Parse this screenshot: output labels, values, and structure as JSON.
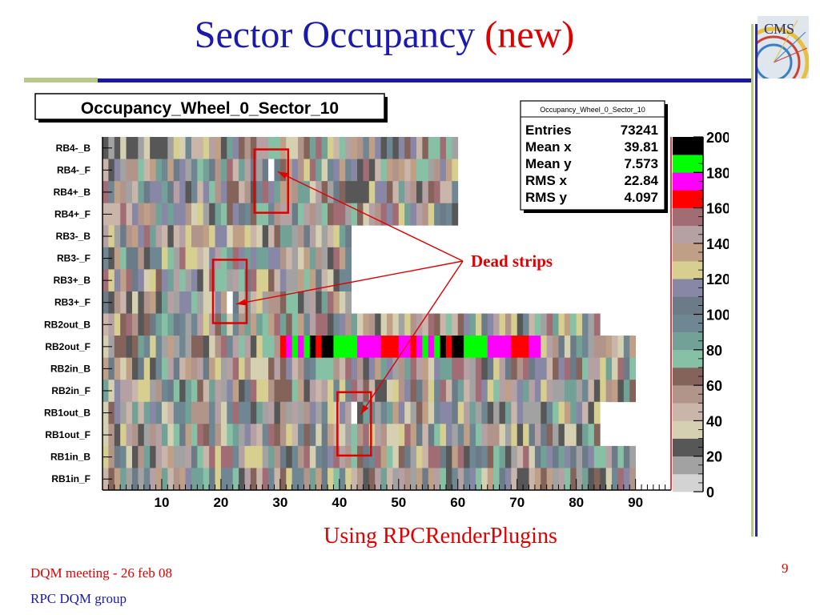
{
  "slide": {
    "title": "Sector Occupancy",
    "title_accent": "(new)",
    "caption": "Using RPCRenderPlugins",
    "footer_meeting": "DQM meeting - 26 feb 08",
    "footer_group": "RPC DQM group",
    "page_number": "9",
    "logo_text": "CMS"
  },
  "colors": {
    "title_blue": "#1a1ab0",
    "accent_red": "#e00000"
  },
  "chart_data": {
    "type": "heatmap",
    "title": "Occupancy_Wheel_0_Sector_10",
    "stats": {
      "name": "Occupancy_Wheel_0_Sector_10",
      "rows": [
        {
          "label": "Entries",
          "value": "73241"
        },
        {
          "label": "Mean x",
          "value": "39.81"
        },
        {
          "label": "Mean y",
          "value": "7.573"
        },
        {
          "label": "RMS x",
          "value": "22.84"
        },
        {
          "label": "RMS y",
          "value": "4.097"
        }
      ]
    },
    "y_categories": [
      "RB4-_B",
      "RB4-_F",
      "RB4+_B",
      "RB4+_F",
      "RB3-_B",
      "RB3-_F",
      "RB3+_B",
      "RB3+_F",
      "RB2out_B",
      "RB2out_F",
      "RB2in_B",
      "RB2in_F",
      "RB1out_B",
      "RB1out_F",
      "RB1in_B",
      "RB1in_F"
    ],
    "strips_per_roll": [
      60,
      60,
      60,
      60,
      42,
      42,
      42,
      42,
      84,
      90,
      90,
      90,
      84,
      84,
      90,
      90
    ],
    "x_range": [
      0,
      96
    ],
    "x_ticks": [
      10,
      20,
      30,
      40,
      50,
      60,
      70,
      80,
      90
    ],
    "z_range": [
      0,
      200
    ],
    "z_ticks": [
      0,
      20,
      40,
      60,
      80,
      100,
      120,
      140,
      160,
      180,
      200
    ],
    "palette": [
      "#d3d3d3",
      "#a2a2a2",
      "#575757",
      "#d6d0b2",
      "#c9b5a9",
      "#b1958a",
      "#84645a",
      "#87c1a5",
      "#72a197",
      "#6f8792",
      "#6b7b88",
      "#8987a6",
      "#d7cf8f",
      "#bf9f85",
      "#b5a0a4",
      "#a26c75",
      "#ff0000",
      "#ff00ff",
      "#00ff00",
      "#000000"
    ],
    "dead_strips": [
      {
        "roll": "RB4-_F",
        "strip": 29
      },
      {
        "roll": "RB3+_F",
        "strip": 22
      },
      {
        "roll": "RB1out_B",
        "strip": 43
      }
    ],
    "annotation": "Dead strips"
  }
}
